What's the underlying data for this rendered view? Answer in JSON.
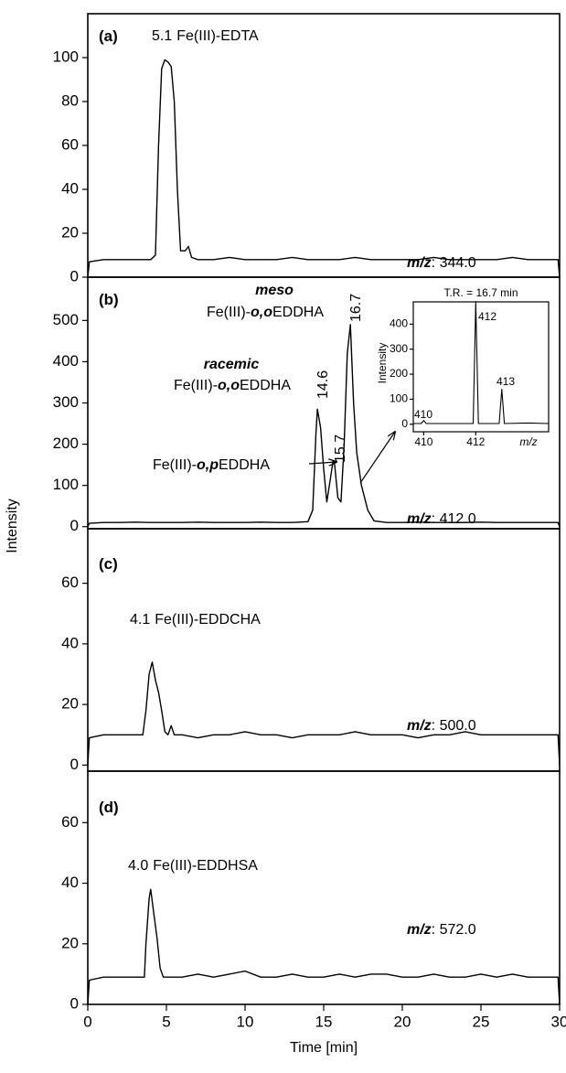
{
  "ylabel": "Intensity",
  "chart_data": [
    {
      "type": "line",
      "panel_label": "(a)",
      "color": "#000000",
      "x": [
        0,
        0.1,
        1,
        2,
        3,
        4,
        4.3,
        4.5,
        4.7,
        4.9,
        5.1,
        5.3,
        5.5,
        5.7,
        5.9,
        6.2,
        6.4,
        6.6,
        7,
        8,
        9,
        10,
        11,
        12,
        13,
        14,
        15,
        16,
        17,
        18,
        19,
        20,
        21,
        22,
        23,
        24,
        25,
        26,
        27,
        28,
        29,
        29.9,
        30
      ],
      "values": [
        0,
        7,
        8,
        8,
        8,
        8,
        10,
        60,
        95,
        99,
        98,
        96,
        80,
        40,
        12,
        12,
        14,
        9,
        8,
        8,
        9,
        8,
        8,
        8,
        9,
        8,
        8,
        8,
        9,
        8,
        8,
        8,
        8,
        9,
        8,
        8,
        8,
        8,
        9,
        8,
        8,
        8,
        0
      ],
      "xlim": [
        0,
        30
      ],
      "ylim": [
        0,
        120
      ],
      "yticks": [
        0,
        20,
        40,
        60,
        80,
        100
      ],
      "peaks": [
        {
          "time": "5.1",
          "name": [
            "Fe(III)-EDTA"
          ]
        }
      ],
      "ion": {
        "label": "m/z",
        "value": ": 344.0"
      }
    },
    {
      "type": "line",
      "panel_label": "(b)",
      "color": "#000000",
      "x": [
        0,
        0.1,
        1,
        2,
        3,
        4,
        5,
        6,
        7,
        8,
        9,
        10,
        11,
        12,
        13,
        14,
        14.3,
        14.5,
        14.6,
        14.8,
        15,
        15.2,
        15.4,
        15.6,
        15.7,
        15.9,
        16.1,
        16.3,
        16.5,
        16.7,
        16.9,
        17.1,
        17.4,
        17.8,
        18.2,
        19,
        20,
        21,
        22,
        23,
        24,
        25,
        26,
        27,
        28,
        29,
        29.9,
        30
      ],
      "values": [
        0,
        8,
        10,
        10,
        11,
        10,
        10,
        10,
        11,
        10,
        10,
        10,
        11,
        10,
        10,
        12,
        40,
        220,
        285,
        240,
        140,
        60,
        110,
        160,
        150,
        70,
        60,
        200,
        420,
        490,
        300,
        180,
        100,
        40,
        14,
        10,
        10,
        11,
        10,
        10,
        10,
        11,
        10,
        10,
        10,
        10,
        10,
        0
      ],
      "xlim": [
        0,
        30
      ],
      "ylim": [
        -5,
        605
      ],
      "yticks": [
        0,
        100,
        200,
        300,
        400,
        500
      ],
      "peaks": [
        {
          "label": "meso",
          "name": [
            "Fe(III)-",
            "o,o",
            "EDDHA"
          ]
        },
        {
          "label": "racemic",
          "name": [
            "Fe(III)-",
            "o,o",
            "EDDHA"
          ]
        },
        {
          "name": [
            "Fe(III)-",
            "o,p",
            "EDDHA"
          ]
        }
      ],
      "times": [
        14.6,
        15.7,
        16.7
      ],
      "ion": {
        "label": "m/z",
        "value": ": 412.0"
      }
    },
    {
      "type": "line",
      "panel_label": "(c)",
      "color": "#000000",
      "x": [
        0,
        0.1,
        1,
        2,
        3,
        3.5,
        3.7,
        3.9,
        4.1,
        4.3,
        4.5,
        4.7,
        4.9,
        5.1,
        5.3,
        5.5,
        6,
        7,
        8,
        9,
        10,
        11,
        12,
        13,
        14,
        15,
        16,
        17,
        18,
        19,
        20,
        21,
        22,
        23,
        24,
        25,
        26,
        27,
        28,
        29,
        29.9,
        30
      ],
      "values": [
        0,
        9,
        10,
        10,
        10,
        10,
        18,
        30,
        34,
        28,
        24,
        18,
        11,
        10,
        13,
        10,
        10,
        9,
        10,
        10,
        11,
        10,
        10,
        9,
        10,
        10,
        10,
        11,
        10,
        10,
        10,
        9,
        10,
        10,
        11,
        10,
        10,
        10,
        10,
        10,
        10,
        0
      ],
      "xlim": [
        0,
        30
      ],
      "ylim": [
        -2,
        78
      ],
      "yticks": [
        0,
        20,
        40,
        60
      ],
      "peaks": [
        {
          "time": "4.1",
          "name": [
            "Fe(III)-EDDCHA"
          ]
        }
      ],
      "ion": {
        "label": "m/z",
        "value": ": 500.0"
      }
    },
    {
      "type": "line",
      "panel_label": "(d)",
      "color": "#000000",
      "x": [
        0,
        0.1,
        1,
        2,
        3,
        3.6,
        3.7,
        3.9,
        4.0,
        4.2,
        4.4,
        4.6,
        4.8,
        5,
        6,
        7,
        8,
        9,
        10,
        11,
        12,
        13,
        14,
        15,
        16,
        17,
        18,
        19,
        20,
        21,
        22,
        23,
        24,
        25,
        26,
        27,
        28,
        29,
        29.9,
        30
      ],
      "values": [
        0,
        8,
        9,
        9,
        9,
        9,
        20,
        35,
        38,
        30,
        22,
        12,
        9,
        9,
        9,
        10,
        9,
        10,
        11,
        9,
        9,
        10,
        9,
        9,
        10,
        9,
        10,
        10,
        9,
        9,
        10,
        9,
        9,
        10,
        9,
        10,
        9,
        9,
        9,
        0
      ],
      "xlim": [
        0,
        30
      ],
      "ylim": [
        0,
        77
      ],
      "yticks": [
        0,
        20,
        40,
        60
      ],
      "xticks": [
        0,
        5,
        10,
        15,
        20,
        25,
        30
      ],
      "xlabel": "Time [min]",
      "peaks": [
        {
          "time": "4.0",
          "name": [
            "Fe(III)-EDDHSA"
          ]
        }
      ],
      "ion": {
        "label": "m/z",
        "value": ": 572.0"
      }
    },
    {
      "type": "line",
      "title": "T.R. = 16.7 min",
      "xlabel": "m/z",
      "ylabel": "Intensity",
      "color": "#000000",
      "x": [
        409.6,
        409.9,
        410,
        410.1,
        411,
        411.9,
        412,
        412.1,
        412.9,
        413,
        413.1,
        414,
        414.8
      ],
      "values": [
        3,
        3,
        15,
        3,
        3,
        3,
        490,
        3,
        3,
        140,
        3,
        5,
        3
      ],
      "xlim": [
        409.6,
        414.8
      ],
      "ylim": [
        -30,
        489
      ],
      "xticks": [
        410,
        412
      ],
      "yticks": [
        0,
        100,
        200,
        300,
        400
      ],
      "peak_labels": [
        410,
        412,
        413
      ]
    }
  ]
}
